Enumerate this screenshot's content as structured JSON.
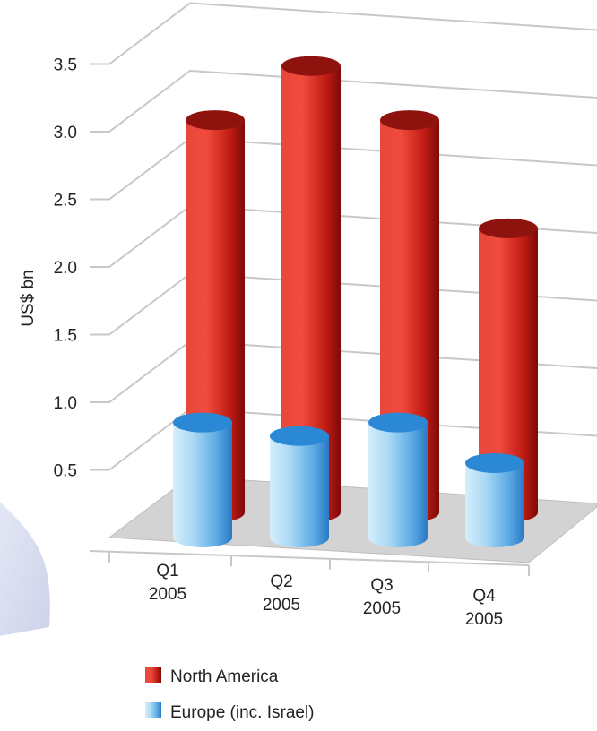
{
  "chart_data": {
    "type": "bar",
    "style": "3d-cylinder",
    "ylabel": "US$ bn",
    "ylim": [
      0,
      4.0
    ],
    "y_ticks": [
      "0.5",
      "1.0",
      "1.5",
      "2.0",
      "2.5",
      "3.0",
      "3.5"
    ],
    "categories": [
      {
        "line1": "Q1",
        "line2": "2005"
      },
      {
        "line1": "Q2",
        "line2": "2005"
      },
      {
        "line1": "Q3",
        "line2": "2005"
      },
      {
        "line1": "Q4",
        "line2": "2005"
      }
    ],
    "series": [
      {
        "name": "North America",
        "color": "#c8201a",
        "values": [
          2.9,
          3.3,
          2.9,
          2.1
        ]
      },
      {
        "name": "Europe (inc. Israel)",
        "color": "#3d93d8",
        "values": [
          0.85,
          0.75,
          0.85,
          0.55
        ]
      }
    ],
    "grid": true,
    "legend_position": "bottom-left"
  }
}
